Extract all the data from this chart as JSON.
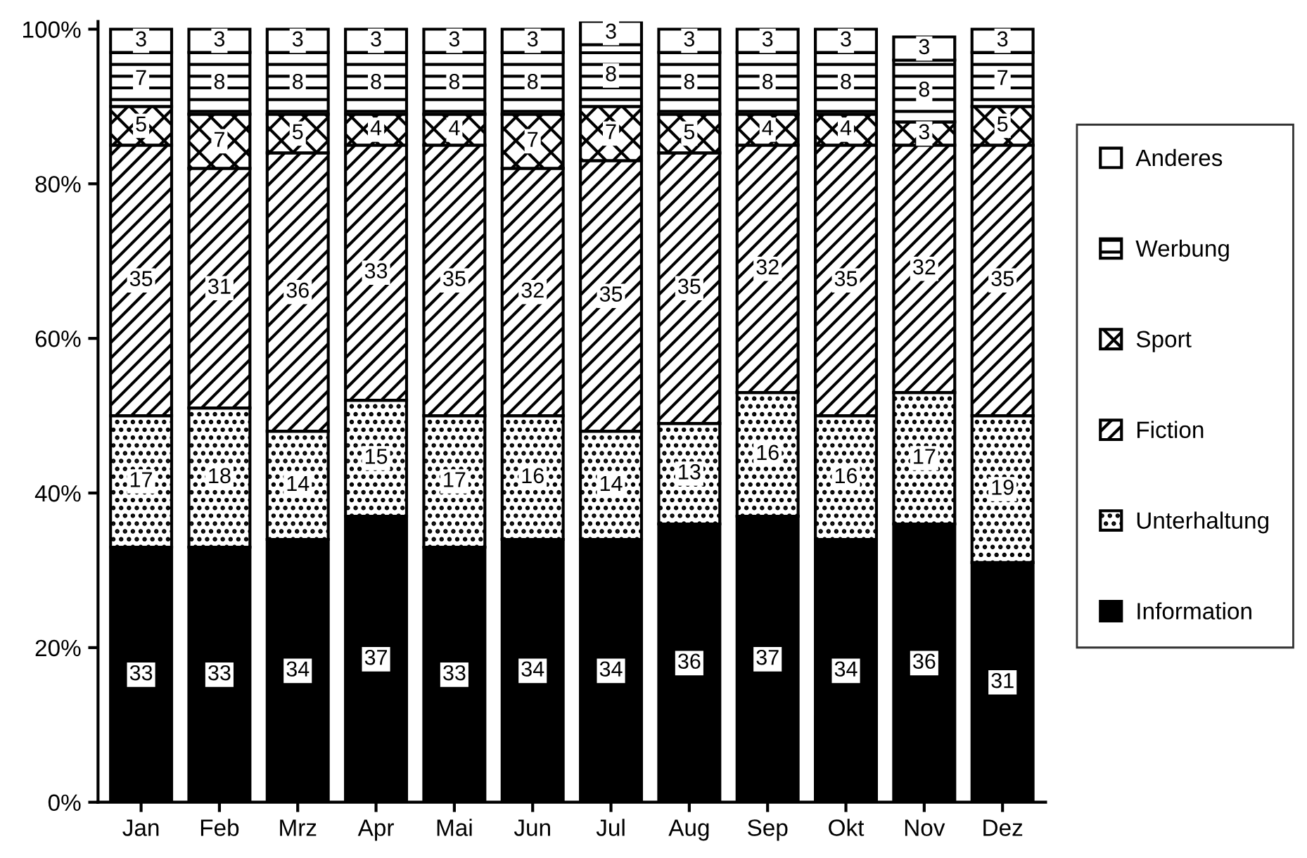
{
  "chart_data": {
    "type": "bar",
    "stacked": true,
    "data_labels": true,
    "legend": "right",
    "grid": false,
    "categories": [
      "Jan",
      "Feb",
      "Mrz",
      "Apr",
      "Mai",
      "Jun",
      "Jul",
      "Aug",
      "Sep",
      "Okt",
      "Nov",
      "Dez"
    ],
    "ylim": [
      0,
      101
    ],
    "yticks": [
      {
        "value": 0,
        "label": "0%"
      },
      {
        "value": 20,
        "label": "20%"
      },
      {
        "value": 40,
        "label": "40%"
      },
      {
        "value": 60,
        "label": "60%"
      },
      {
        "value": 80,
        "label": "80%"
      },
      {
        "value": 100,
        "label": "100%"
      }
    ],
    "series": [
      {
        "name": "Information",
        "color": "#000000",
        "values": [
          33,
          33,
          34,
          37,
          33,
          34,
          34,
          36,
          37,
          34,
          36,
          31
        ]
      },
      {
        "name": "Unterhaltung",
        "color": "#000000",
        "values": [
          17,
          18,
          14,
          15,
          17,
          16,
          14,
          13,
          16,
          16,
          17,
          19
        ]
      },
      {
        "name": "Fiction",
        "color": "#000000",
        "values": [
          35,
          31,
          36,
          33,
          35,
          32,
          35,
          35,
          32,
          35,
          32,
          35
        ]
      },
      {
        "name": "Sport",
        "color": "#000000",
        "values": [
          5,
          7,
          5,
          4,
          4,
          7,
          7,
          5,
          4,
          4,
          3,
          5
        ]
      },
      {
        "name": "Werbung",
        "color": "#000000",
        "values": [
          7,
          8,
          8,
          8,
          8,
          8,
          8,
          8,
          8,
          8,
          8,
          7
        ]
      },
      {
        "name": "Anderes",
        "color": "#ffffff",
        "values": [
          3,
          3,
          3,
          3,
          3,
          3,
          3,
          3,
          3,
          3,
          3,
          3
        ]
      }
    ]
  }
}
